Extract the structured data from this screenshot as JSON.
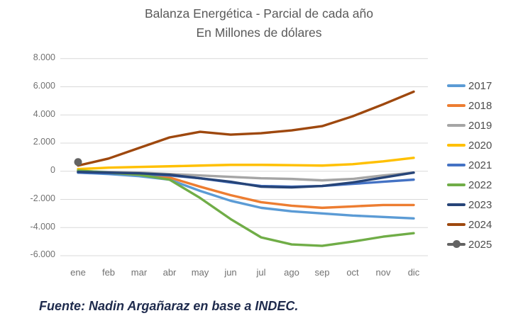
{
  "title": {
    "line1": "Balanza Energética - Parcial de cada año",
    "line2": "En Millones de dólares"
  },
  "footer": {
    "text": "Fuente: Nadin Argañaraz en base a INDEC."
  },
  "styles": {
    "background": "#FFFFFF",
    "grid_color": "#D9D9D9",
    "axis_label_color": "#717171",
    "title_color": "#595959",
    "legend_text_color": "#4D4D4D",
    "footer_color": "#1F2B4D"
  },
  "chart_data": {
    "type": "line",
    "title": "Balanza Energética - Parcial de cada año",
    "subtitle": "En Millones de dólares",
    "xlabel": "",
    "ylabel": "",
    "grid": true,
    "legend_position": "right",
    "x_categories": [
      "ene",
      "feb",
      "mar",
      "abr",
      "may",
      "jun",
      "jul",
      "ago",
      "sep",
      "oct",
      "nov",
      "dic"
    ],
    "y_axis": {
      "min": -6000,
      "max": 8000,
      "tick_step": 2000,
      "tick_values": [
        8000,
        6000,
        4000,
        2000,
        0,
        -2000,
        -4000,
        -6000
      ],
      "tick_labels": [
        "8.000",
        "6.000",
        "4.000",
        "2.000",
        "0",
        "-2.000",
        "-4.000",
        "-6.000"
      ]
    },
    "series": [
      {
        "name": "2017",
        "color": "#5B9BD5",
        "marker": false,
        "values": [
          -100,
          -200,
          -350,
          -600,
          -1400,
          -2100,
          -2600,
          -2850,
          -3000,
          -3150,
          -3250,
          -3350
        ]
      },
      {
        "name": "2018",
        "color": "#ED7D31",
        "marker": false,
        "values": [
          0,
          -100,
          -250,
          -450,
          -1100,
          -1700,
          -2200,
          -2450,
          -2600,
          -2500,
          -2400,
          -2400
        ]
      },
      {
        "name": "2019",
        "color": "#A5A5A5",
        "marker": false,
        "values": [
          0,
          -50,
          -100,
          -200,
          -300,
          -400,
          -500,
          -550,
          -650,
          -550,
          -300,
          -100
        ]
      },
      {
        "name": "2020",
        "color": "#FFC000",
        "marker": false,
        "values": [
          150,
          250,
          300,
          350,
          400,
          450,
          450,
          430,
          400,
          500,
          700,
          950
        ]
      },
      {
        "name": "2021",
        "color": "#4472C4",
        "marker": false,
        "values": [
          -100,
          -150,
          -200,
          -300,
          -500,
          -800,
          -1050,
          -1100,
          -1050,
          -900,
          -750,
          -600
        ]
      },
      {
        "name": "2022",
        "color": "#70AD47",
        "marker": false,
        "values": [
          50,
          -100,
          -250,
          -600,
          -1900,
          -3400,
          -4700,
          -5200,
          -5300,
          -5000,
          -4650,
          -4400
        ]
      },
      {
        "name": "2023",
        "color": "#264478",
        "marker": false,
        "values": [
          -50,
          -100,
          -150,
          -250,
          -500,
          -750,
          -1100,
          -1150,
          -1050,
          -800,
          -450,
          -100
        ]
      },
      {
        "name": "2024",
        "color": "#9E480E",
        "marker": false,
        "values": [
          400,
          900,
          1650,
          2400,
          2800,
          2600,
          2700,
          2900,
          3200,
          3900,
          4750,
          5650
        ]
      },
      {
        "name": "2025",
        "color": "#636363",
        "marker": true,
        "values": [
          650,
          null,
          null,
          null,
          null,
          null,
          null,
          null,
          null,
          null,
          null,
          null
        ]
      }
    ]
  }
}
